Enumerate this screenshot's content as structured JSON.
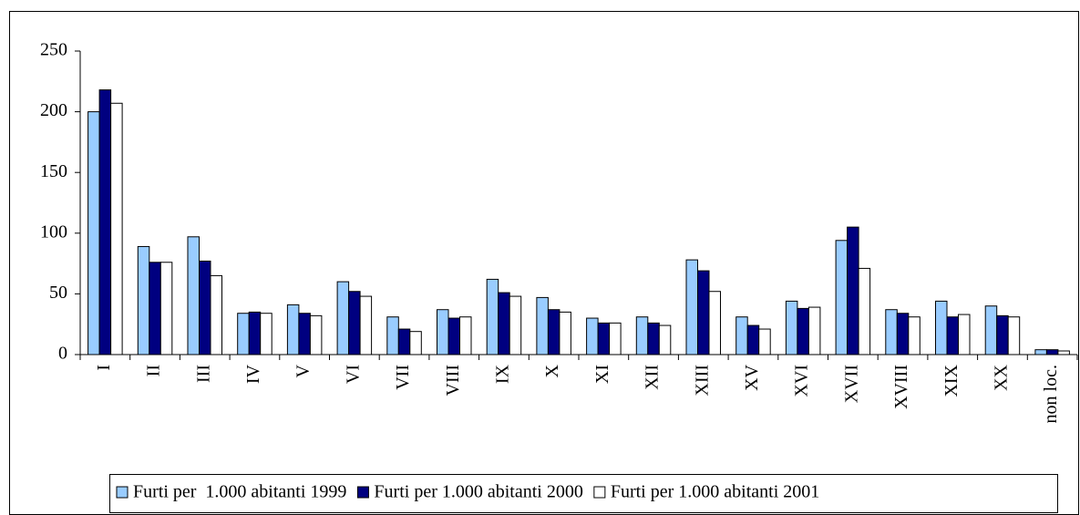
{
  "chart_data": {
    "type": "bar",
    "categories": [
      "I",
      "II",
      "III",
      "IV",
      "V",
      "VI",
      "VII",
      "VIII",
      "IX",
      "X",
      "XI",
      "XII",
      "XIII",
      "XV",
      "XVI",
      "XVII",
      "XVIII",
      "XIX",
      "XX",
      "non loc."
    ],
    "series": [
      {
        "name": "Furti per  1.000 abitanti 1999",
        "color": "#99ccff",
        "values": [
          200,
          89,
          97,
          34,
          41,
          60,
          31,
          37,
          62,
          47,
          30,
          31,
          78,
          31,
          44,
          94,
          37,
          44,
          40,
          4
        ]
      },
      {
        "name": "Furti per 1.000 abitanti 2000",
        "color": "#000080",
        "values": [
          218,
          76,
          77,
          35,
          34,
          52,
          21,
          30,
          51,
          37,
          26,
          26,
          69,
          24,
          38,
          105,
          34,
          31,
          32,
          4
        ]
      },
      {
        "name": "Furti per 1.000 abitanti 2001",
        "color": "#ffffff",
        "values": [
          207,
          76,
          65,
          34,
          32,
          48,
          19,
          31,
          48,
          35,
          26,
          24,
          52,
          21,
          39,
          71,
          31,
          33,
          31,
          3
        ]
      }
    ],
    "ylim": [
      0,
      250
    ],
    "yticks": [
      0,
      50,
      100,
      150,
      200,
      250
    ],
    "grid": false,
    "legend": "bottom"
  }
}
